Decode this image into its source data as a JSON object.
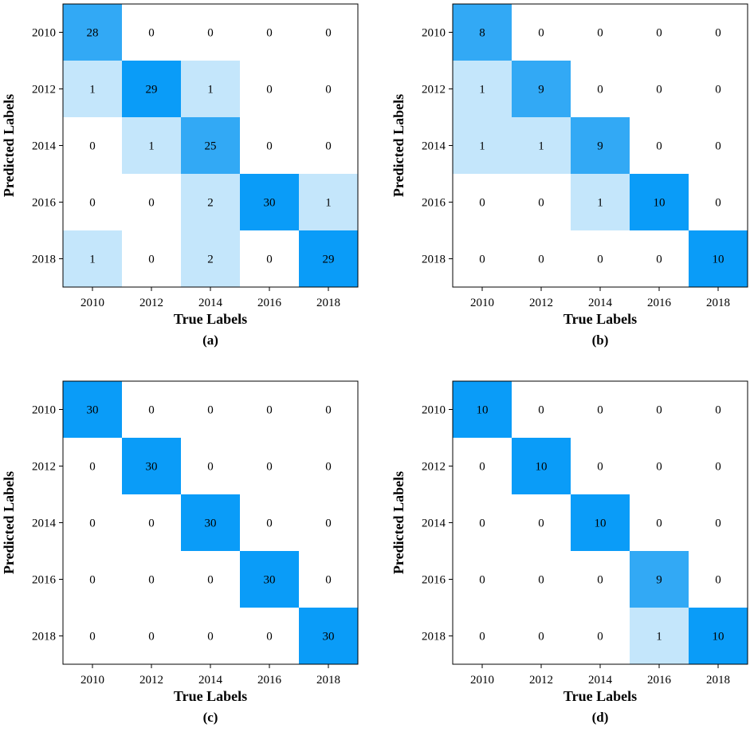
{
  "chart_data": [
    {
      "type": "heatmap",
      "title": "",
      "panel_label": "(a)",
      "xlabel": "True Labels",
      "ylabel": "Predicted Labels",
      "x_categories": [
        "2010",
        "2012",
        "2014",
        "2016",
        "2018"
      ],
      "y_categories": [
        "2010",
        "2012",
        "2014",
        "2016",
        "2018"
      ],
      "values": [
        [
          28,
          0,
          0,
          0,
          0
        ],
        [
          1,
          29,
          1,
          0,
          0
        ],
        [
          0,
          1,
          25,
          0,
          0
        ],
        [
          0,
          0,
          2,
          30,
          1
        ],
        [
          1,
          0,
          2,
          0,
          29
        ]
      ]
    },
    {
      "type": "heatmap",
      "title": "",
      "panel_label": "(b)",
      "xlabel": "True Labels",
      "ylabel": "Predicted Labels",
      "x_categories": [
        "2010",
        "2012",
        "2014",
        "2016",
        "2018"
      ],
      "y_categories": [
        "2010",
        "2012",
        "2014",
        "2016",
        "2018"
      ],
      "values": [
        [
          8,
          0,
          0,
          0,
          0
        ],
        [
          1,
          9,
          0,
          0,
          0
        ],
        [
          1,
          1,
          9,
          0,
          0
        ],
        [
          0,
          0,
          1,
          10,
          0
        ],
        [
          0,
          0,
          0,
          0,
          10
        ]
      ]
    },
    {
      "type": "heatmap",
      "title": "",
      "panel_label": "(c)",
      "xlabel": "True Labels",
      "ylabel": "Predicted Labels",
      "x_categories": [
        "2010",
        "2012",
        "2014",
        "2016",
        "2018"
      ],
      "y_categories": [
        "2010",
        "2012",
        "2014",
        "2016",
        "2018"
      ],
      "values": [
        [
          30,
          0,
          0,
          0,
          0
        ],
        [
          0,
          30,
          0,
          0,
          0
        ],
        [
          0,
          0,
          30,
          0,
          0
        ],
        [
          0,
          0,
          0,
          30,
          0
        ],
        [
          0,
          0,
          0,
          0,
          30
        ]
      ]
    },
    {
      "type": "heatmap",
      "title": "",
      "panel_label": "(d)",
      "xlabel": "True Labels",
      "ylabel": "Predicted Labels",
      "x_categories": [
        "2010",
        "2012",
        "2014",
        "2016",
        "2018"
      ],
      "y_categories": [
        "2010",
        "2012",
        "2014",
        "2016",
        "2018"
      ],
      "values": [
        [
          10,
          0,
          0,
          0,
          0
        ],
        [
          0,
          10,
          0,
          0,
          0
        ],
        [
          0,
          0,
          10,
          0,
          0
        ],
        [
          0,
          0,
          0,
          9,
          0
        ],
        [
          0,
          0,
          0,
          1,
          10
        ]
      ]
    }
  ],
  "colors": {
    "high": "#0a9cf8",
    "mid": "#32a9f5",
    "low": "#c4e6fb",
    "zero": "#ffffff",
    "text": "#000000"
  }
}
